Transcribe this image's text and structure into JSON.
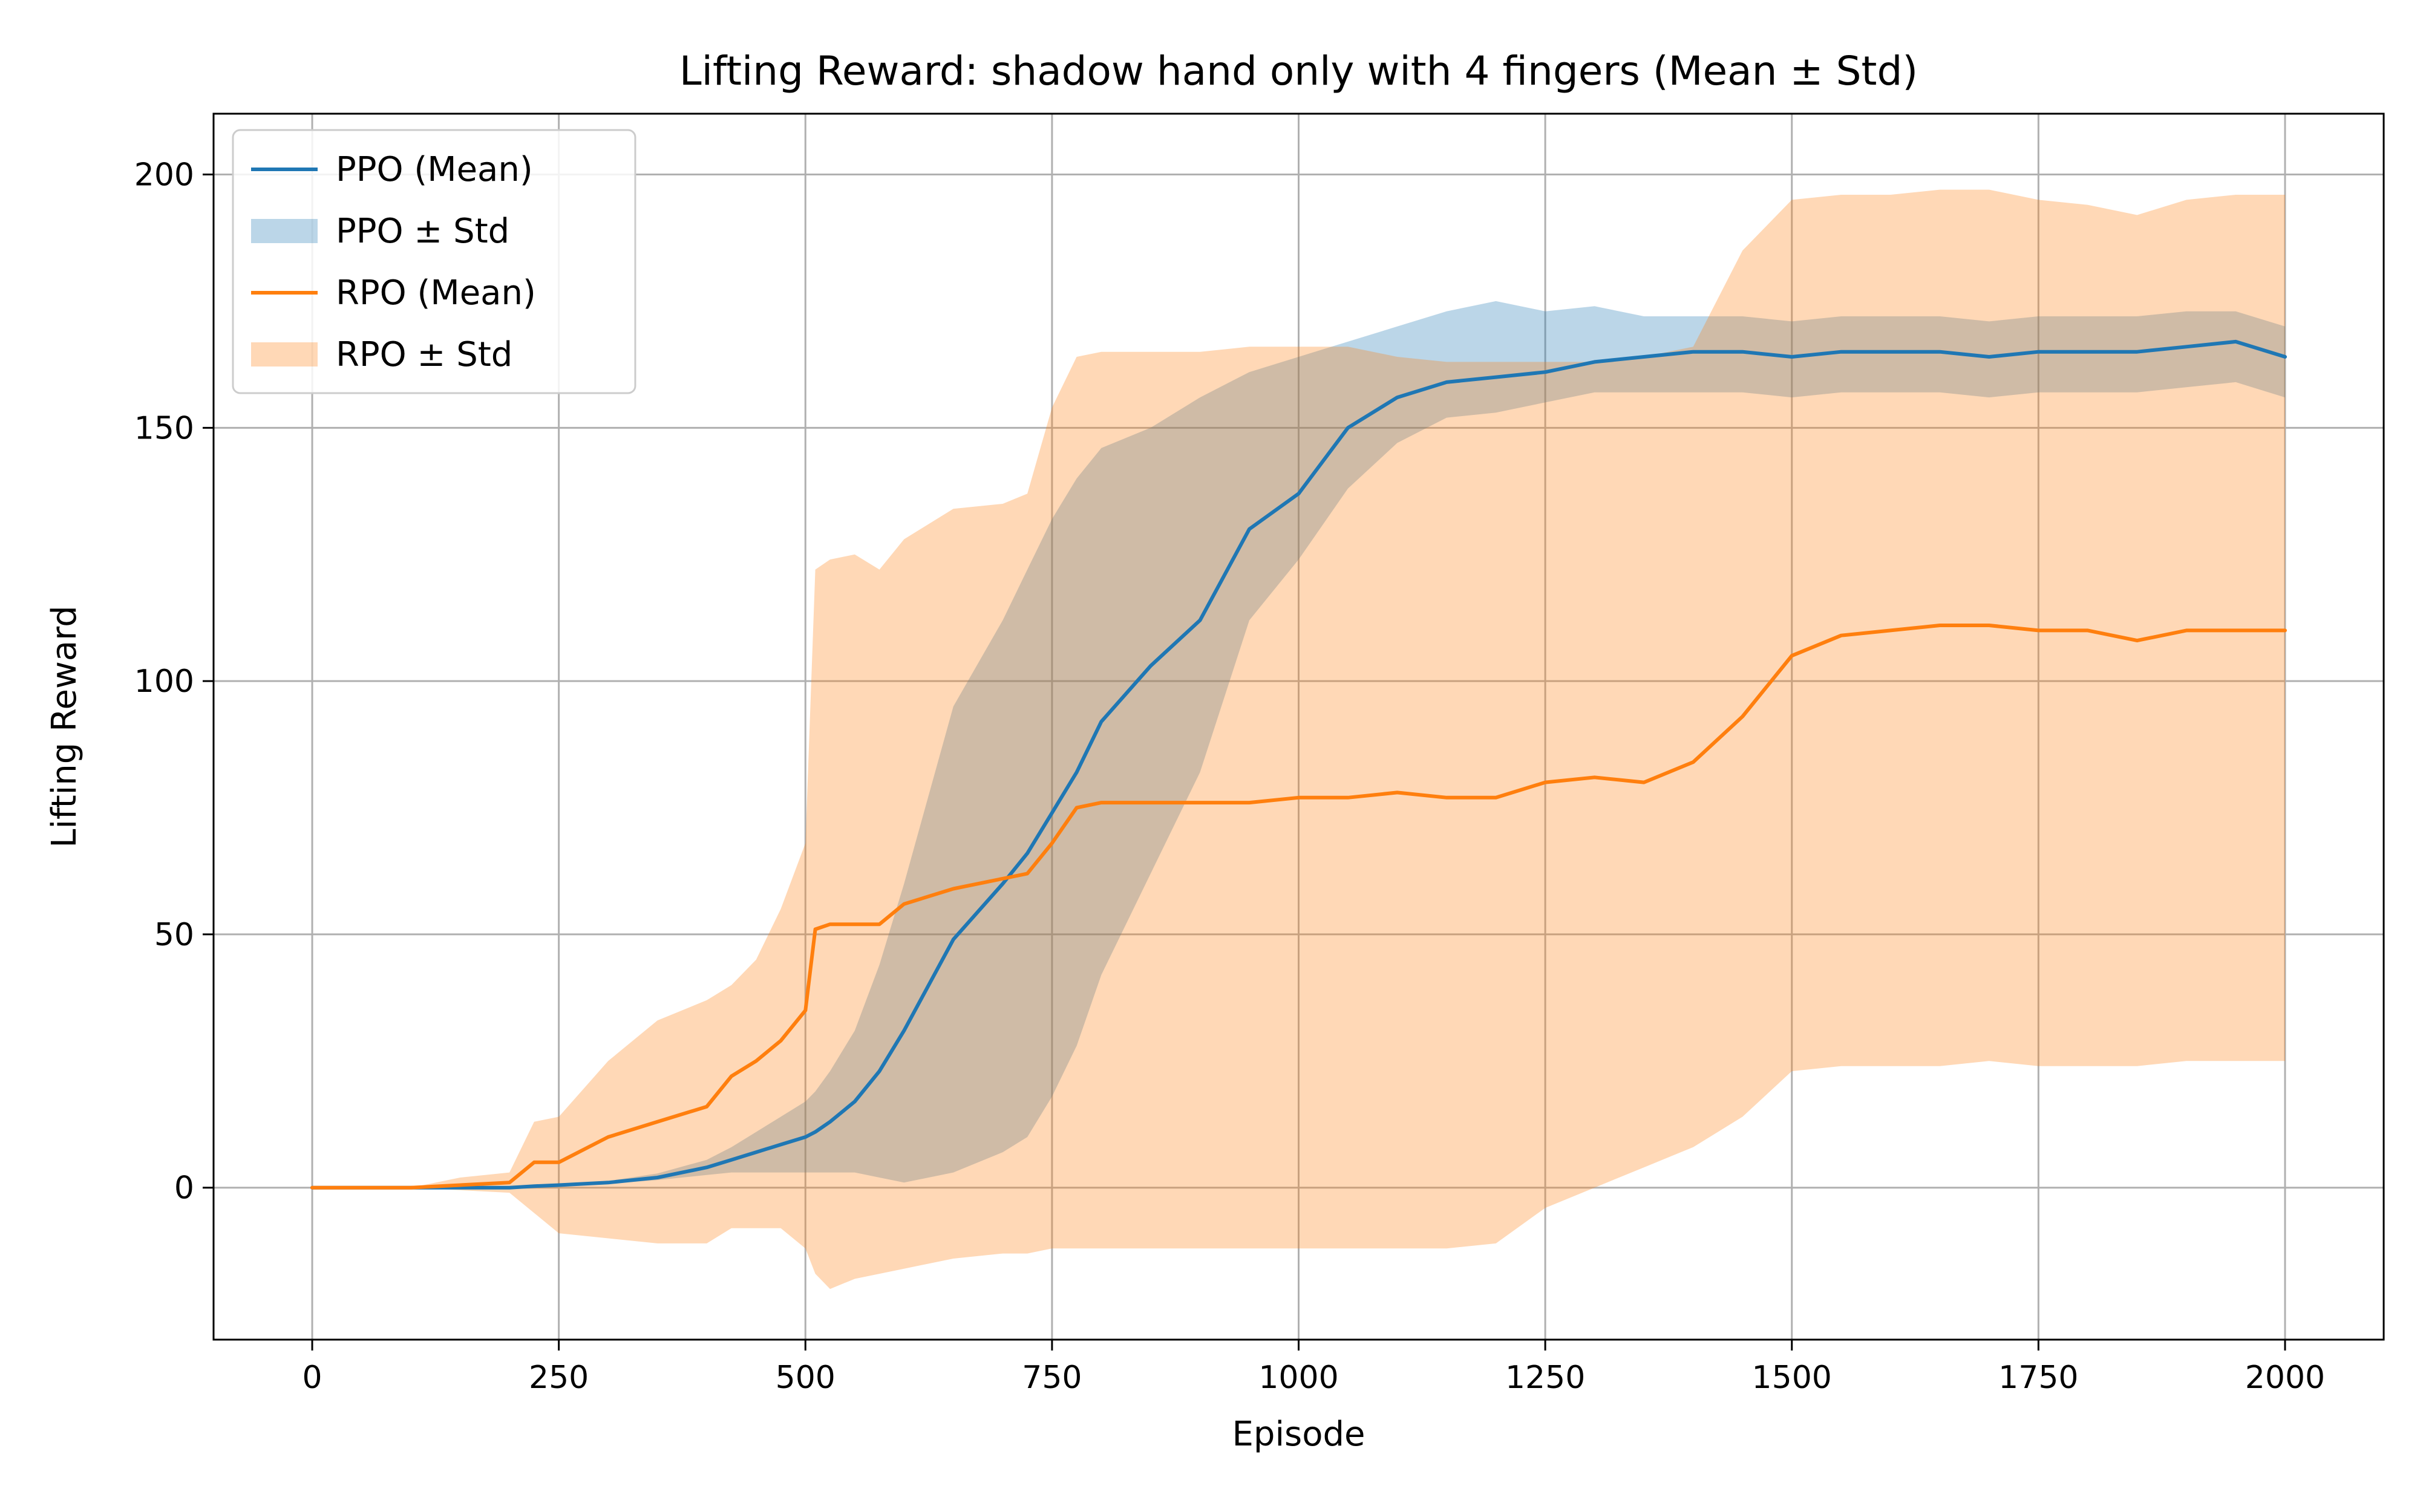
{
  "chart_data": {
    "type": "line",
    "title": "Lifting Reward: shadow hand only with 4 fingers (Mean ± Std)",
    "xlabel": "Episode",
    "ylabel": "Lifting Reward",
    "xlim": [
      -100,
      2100
    ],
    "ylim": [
      -30,
      212
    ],
    "x_ticks": [
      0,
      250,
      500,
      750,
      1000,
      1250,
      1500,
      1750,
      2000
    ],
    "x_tick_labels": [
      "0",
      "250",
      "500",
      "750",
      "1000",
      "1250",
      "1500",
      "1750",
      "2000"
    ],
    "y_ticks": [
      0,
      50,
      100,
      150,
      200
    ],
    "y_tick_labels": [
      "0",
      "50",
      "100",
      "150",
      "200"
    ],
    "grid": true,
    "legend_position": "top-left",
    "x": [
      0,
      50,
      100,
      150,
      200,
      225,
      250,
      300,
      350,
      400,
      425,
      450,
      475,
      500,
      510,
      525,
      550,
      575,
      600,
      650,
      700,
      725,
      750,
      775,
      800,
      850,
      900,
      950,
      1000,
      1050,
      1100,
      1150,
      1200,
      1250,
      1300,
      1350,
      1400,
      1450,
      1500,
      1550,
      1600,
      1650,
      1700,
      1750,
      1800,
      1850,
      1900,
      1950,
      2000
    ],
    "series": [
      {
        "name": "PPO (Mean)",
        "kind": "line",
        "color": "#1f77b4",
        "values": [
          0,
          0,
          0,
          0,
          0,
          0.3,
          0.5,
          1,
          2,
          4,
          5.5,
          7,
          8.5,
          10,
          11,
          13,
          17,
          23,
          31,
          49,
          60,
          66,
          74,
          82,
          92,
          103,
          112,
          130,
          137,
          150,
          156,
          159,
          160,
          161,
          163,
          164,
          165,
          165,
          164,
          165,
          165,
          165,
          164,
          165,
          165,
          165,
          166,
          167,
          164
        ]
      },
      {
        "name": "PPO ± Std",
        "kind": "band",
        "color": "#1f77b4",
        "lower": [
          0,
          0,
          0,
          0,
          0,
          0.2,
          0.4,
          0.8,
          1.5,
          2.5,
          3,
          3,
          3,
          3,
          3,
          3,
          3,
          2,
          1,
          3,
          7,
          10,
          18,
          28,
          42,
          62,
          82,
          112,
          124,
          138,
          147,
          152,
          153,
          155,
          157,
          157,
          157,
          157,
          156,
          157,
          157,
          157,
          156,
          157,
          157,
          157,
          158,
          159,
          156
        ],
        "upper": [
          0,
          0,
          0,
          0,
          0,
          0.4,
          0.6,
          1.3,
          2.8,
          5.5,
          8,
          11,
          14,
          17,
          19,
          23,
          31,
          44,
          60,
          95,
          112,
          122,
          132,
          140,
          146,
          150,
          156,
          161,
          164,
          167,
          170,
          173,
          175,
          173,
          174,
          172,
          172,
          172,
          171,
          172,
          172,
          172,
          171,
          172,
          172,
          172,
          173,
          173,
          170
        ]
      },
      {
        "name": "RPO (Mean)",
        "kind": "line",
        "color": "#ff7f0e",
        "values": [
          0,
          0,
          0,
          0.5,
          1,
          5,
          5,
          10,
          13,
          16,
          22,
          25,
          29,
          35,
          51,
          52,
          52,
          52,
          56,
          59,
          61,
          62,
          68,
          75,
          76,
          76,
          76,
          76,
          77,
          77,
          78,
          77,
          77,
          80,
          81,
          80,
          84,
          93,
          105,
          109,
          110,
          111,
          111,
          110,
          110,
          108,
          110,
          110,
          110
        ]
      },
      {
        "name": "RPO ± Std",
        "kind": "band",
        "color": "#ff7f0e",
        "lower": [
          0,
          0,
          0,
          -0.5,
          -1,
          -5,
          -9,
          -10,
          -11,
          -11,
          -8,
          -8,
          -8,
          -12,
          -17,
          -20,
          -18,
          -17,
          -16,
          -14,
          -13,
          -13,
          -12,
          -12,
          -12,
          -12,
          -12,
          -12,
          -12,
          -12,
          -12,
          -12,
          -11,
          -4,
          0,
          4,
          8,
          14,
          23,
          24,
          24,
          24,
          25,
          24,
          24,
          24,
          25,
          25,
          25
        ],
        "upper": [
          0,
          0,
          0,
          2,
          3,
          13,
          14,
          25,
          33,
          37,
          40,
          45,
          55,
          68,
          122,
          124,
          125,
          122,
          128,
          134,
          135,
          137,
          154,
          164,
          165,
          165,
          165,
          166,
          166,
          166,
          164,
          163,
          163,
          163,
          163,
          164,
          166,
          185,
          195,
          196,
          196,
          197,
          197,
          195,
          194,
          192,
          195,
          196,
          196
        ]
      }
    ],
    "legend": [
      {
        "label": "PPO (Mean)",
        "kind": "line",
        "color": "#1f77b4"
      },
      {
        "label": "PPO ± Std",
        "kind": "band",
        "color": "#1f77b4"
      },
      {
        "label": "RPO (Mean)",
        "kind": "line",
        "color": "#ff7f0e"
      },
      {
        "label": "RPO ± Std",
        "kind": "band",
        "color": "#ff7f0e"
      }
    ]
  }
}
